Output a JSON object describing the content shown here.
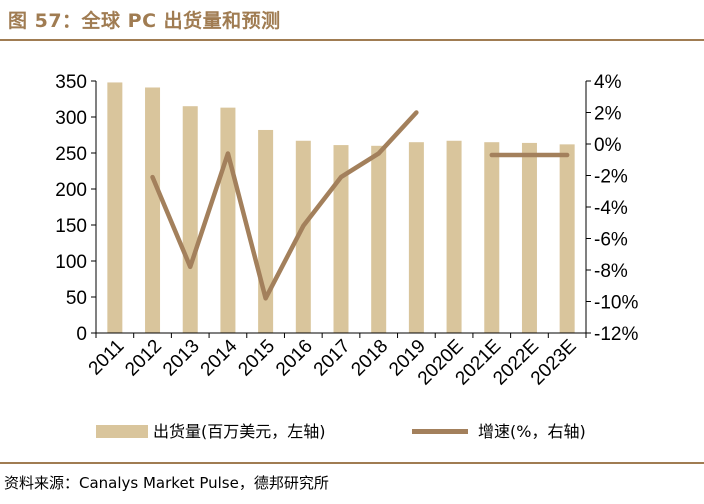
{
  "header": {
    "title": "图 57：全球 PC 出货量和预测"
  },
  "footer": {
    "source": "资料来源：Canalys Market Pulse，德邦研究所"
  },
  "colors": {
    "accent": "#a07c52",
    "bar": "#d9c59c",
    "line": "#a3805c"
  },
  "chart_data": {
    "type": "bar",
    "title": "全球 PC 出货量和预测",
    "categories": [
      "2011",
      "2012",
      "2013",
      "2014",
      "2015",
      "2016",
      "2017",
      "2018",
      "2019",
      "2020E",
      "2021E",
      "2022E",
      "2023E"
    ],
    "series": [
      {
        "name": "出货量(百万美元，左轴)",
        "type": "bar",
        "axis": "left",
        "values": [
          348,
          341,
          315,
          313,
          282,
          267,
          261,
          260,
          265,
          267,
          265,
          264,
          262
        ]
      },
      {
        "name": "增速(%，右轴)",
        "type": "line",
        "axis": "right",
        "values": [
          null,
          -2.1,
          -7.8,
          -0.6,
          -9.8,
          -5.2,
          -2.1,
          -0.6,
          2.0,
          null,
          -0.7,
          -0.7,
          -0.7
        ]
      }
    ],
    "y_left": {
      "min": 0,
      "max": 350,
      "ticks": [
        0,
        50,
        100,
        150,
        200,
        250,
        300,
        350
      ],
      "tick_labels": [
        "0",
        "50",
        "100",
        "150",
        "200",
        "250",
        "300",
        "350"
      ]
    },
    "y_right": {
      "min": -12,
      "max": 4,
      "ticks": [
        -12,
        -10,
        -8,
        -6,
        -4,
        -2,
        0,
        2,
        4
      ],
      "tick_labels": [
        "-12%",
        "-10%",
        "-8%",
        "-6%",
        "-4%",
        "-2%",
        "0%",
        "2%",
        "4%"
      ]
    },
    "legend": {
      "position": "bottom",
      "entries": [
        "出货量(百万美元，左轴)",
        "增速(%，右轴)"
      ]
    },
    "grid": false
  }
}
